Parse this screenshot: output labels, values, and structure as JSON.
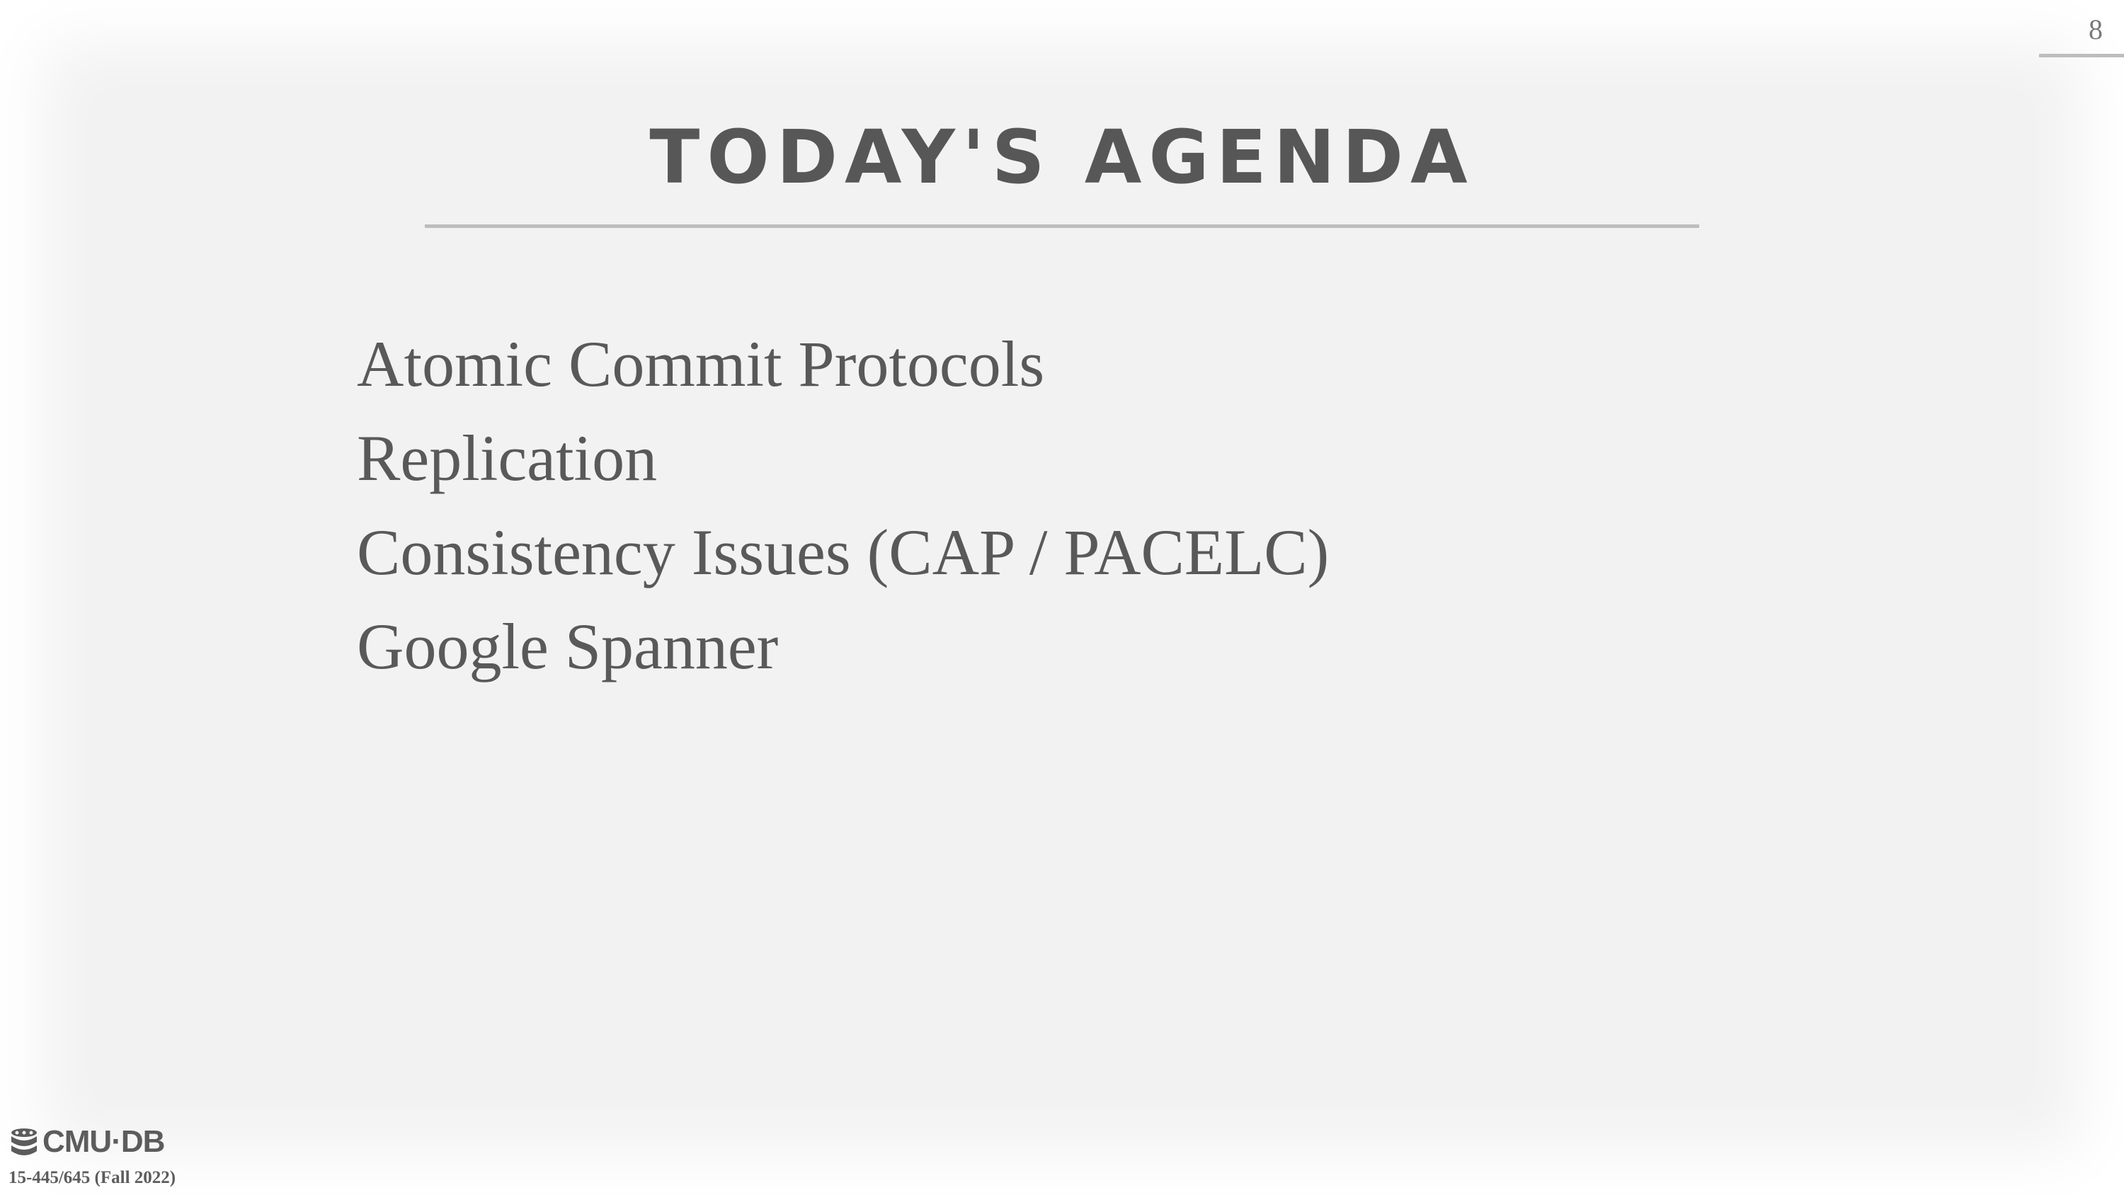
{
  "slide": {
    "page_number": "8",
    "title": "TODAY'S AGENDA",
    "agenda_items": [
      "Atomic Commit Protocols",
      "Replication",
      "Consistency Issues (CAP / PACELC)",
      "Google Spanner"
    ]
  },
  "footer": {
    "logo_text": "CMU·DB",
    "logo_icon": "database-stack-icon",
    "course": "15-445/645 (Fall 2022)"
  },
  "colors": {
    "background": "#f2f2f2",
    "title": "#575757",
    "body_text": "#595959",
    "rule": "#bdbdbd"
  }
}
